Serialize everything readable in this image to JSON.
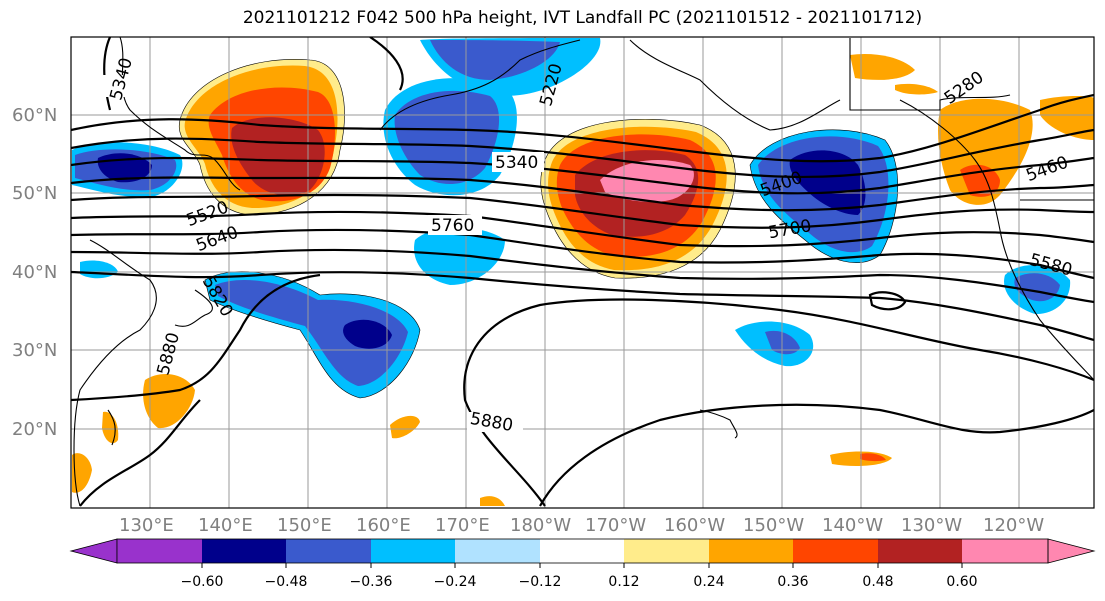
{
  "title": "2021101212 F042 500 hPa height, IVT Landfall PC (2021101512 - 2021101712)",
  "map": {
    "lon_labels": [
      "130°E",
      "140°E",
      "150°E",
      "160°E",
      "170°E",
      "180°W",
      "170°W",
      "160°W",
      "150°W",
      "140°W",
      "130°W",
      "120°W"
    ],
    "lat_labels": [
      "60°N",
      "50°N",
      "40°N",
      "30°N",
      "20°N"
    ],
    "height_contour_labels": [
      "5340",
      "5220",
      "5280",
      "5340",
      "5400",
      "5460",
      "5520",
      "5640",
      "5760",
      "5700",
      "5580",
      "5820",
      "5880",
      "5880"
    ]
  },
  "colorbar": {
    "tick_labels": [
      "−0.60",
      "−0.48",
      "−0.36",
      "−0.24",
      "−0.12",
      "0.12",
      "0.24",
      "0.36",
      "0.48",
      "0.60"
    ],
    "colors": [
      "#9932CC",
      "#00008B",
      "#3A5ACD",
      "#00BFFF",
      "#B0E2FF",
      "#FFFFFF",
      "#FFEC8B",
      "#FFA500",
      "#FF4500",
      "#B22222",
      "#FF87B0"
    ]
  },
  "colors": {
    "purple": "#9932CC",
    "navy": "#00008B",
    "royal": "#3A5ACD",
    "sky": "#00BFFF",
    "pale": "#B0E2FF",
    "yellow": "#FFEC8B",
    "orange": "#FFA500",
    "redorange": "#FF4500",
    "firebrick": "#B22222",
    "pink": "#FF87B0"
  }
}
